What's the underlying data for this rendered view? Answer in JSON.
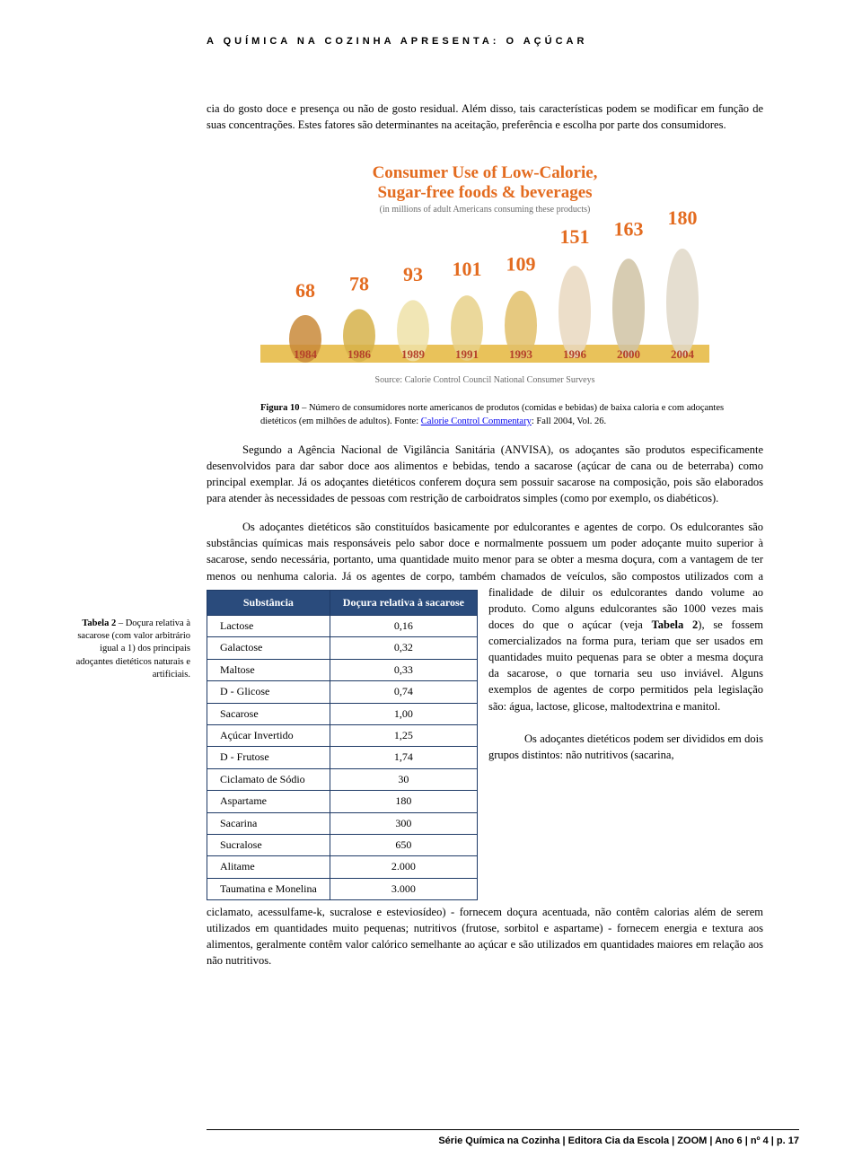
{
  "theme": {
    "link_color": "#0000ee",
    "text_color": "#000000",
    "table_header_bg": "#2a4b7c",
    "table_border": "#1e3a66"
  },
  "header": {
    "title": "A QUÍMICA NA COZINHA APRESENTA: O AÇÚCAR"
  },
  "para1": "cia do gosto doce e presença ou não de gosto residual. Além disso, tais características podem se modificar em função de suas concentrações. Estes fatores são determinantes na aceitação, preferência e escolha por parte dos consumidores.",
  "chart": {
    "type": "infographic-bar",
    "title_line1": "Consumer Use of Low-Calorie,",
    "title_line2": "Sugar-free foods & beverages",
    "subtitle": "(in millions of adult Americans consuming these products)",
    "source_line": "Source: Calorie Control Council National Consumer Surveys",
    "title_color": "#e36b1f",
    "value_color": "#e36b1f",
    "subtitle_color": "#6a6a6a",
    "background": "#ffffff",
    "categories": [
      "1984",
      "1986",
      "1989",
      "1991",
      "1993",
      "1996",
      "2000",
      "2004"
    ],
    "values": [
      68,
      78,
      93,
      101,
      109,
      151,
      163,
      180
    ],
    "value_fontsize": 22,
    "cat_fontsize": 13,
    "title_fontsize": 19
  },
  "figcap": {
    "label": "Figura 10",
    "text": " – Número de consumidores norte americanos de produtos (comidas e bebidas) de baixa caloria e com adoçantes dietéticos (em milhões de adultos). Fonte: ",
    "link_text": "Calorie Control Commentary",
    "tail": ": Fall 2004, Vol. 26."
  },
  "para2": "Segundo a Agência Nacional de Vigilância Sanitária (ANVISA), os adoçantes são produtos especificamente desenvolvidos para dar sabor doce aos alimentos e bebidas, tendo a sacarose (açúcar de cana ou de beterraba) como principal exemplar. Já os adoçantes dietéticos conferem doçura sem possuir sacarose na composição, pois são elaborados para atender às necessidades de pessoas com restrição de carboidratos simples (como por exemplo, os diabéticos).",
  "sidecap": {
    "label": "Tabela 2",
    "text": " – Doçura relativa à sacarose (com valor arbitrário igual a 1) dos principais adoçantes dietéticos naturais e artificiais."
  },
  "para3_lead": "Os adoçantes dietéticos são constituídos basicamente por edulcorantes e agentes de corpo. Os edulcorantes são substâncias químicas mais responsáveis pelo sabor doce e normalmente possuem um poder adoçante muito superior à sacarose, sendo necessária, portanto, uma quantidade muito menor para se obter a mesma doçura, com a vantagem de ter menos ou nenhuma caloria. Já os agentes de corpo, também chamados de veículos, são compostos utilizados com a finalidade ",
  "table": {
    "type": "table",
    "columns": [
      "Substância",
      "Doçura relativa à sacarose"
    ],
    "rows": [
      [
        "Lactose",
        "0,16"
      ],
      [
        "Galactose",
        "0,32"
      ],
      [
        "Maltose",
        "0,33"
      ],
      [
        "D - Glicose",
        "0,74"
      ],
      [
        "Sacarose",
        "1,00"
      ],
      [
        "Açúcar Invertido",
        "1,25"
      ],
      [
        "D - Frutose",
        "1,74"
      ],
      [
        "Ciclamato de Sódio",
        "30"
      ],
      [
        "Aspartame",
        "180"
      ],
      [
        "Sacarina",
        "300"
      ],
      [
        "Sucralose",
        "650"
      ],
      [
        "Alitame",
        "2.000"
      ],
      [
        "Taumatina e Monelina",
        "3.000"
      ]
    ]
  },
  "para3_wrap_a": "de diluir os edulcorantes dando volume ao produto. Como alguns edulcorantes são 1000 vezes mais doces do que o açúcar (veja ",
  "para3_wrap_bold": "Tabela 2",
  "para3_wrap_b": "), se fossem comercializados na forma pura, teriam que ser usados em quantidades muito pequenas para se obter a mesma doçura da sacarose, o que tornaria seu uso inviável. Alguns exemplos de agentes de corpo permitidos pela legislação são: água, lactose, glicose, maltodextrina e manitol.",
  "para3_wrap_c": "Os adoçantes dietéticos podem ser divididos em dois grupos distintos: não nutritivos (sacarina,",
  "para3_after": "ciclamato, acessulfame-k, sucralose e esteviosídeo) - fornecem doçura acentuada, não contêm calorias além de serem utilizados em quantidades muito pequenas; nutritivos (frutose, sorbitol e aspartame) - fornecem energia e textura aos alimentos, geralmente contêm valor calórico semelhante ao açúcar e são utilizados em quantidades maiores em relação aos não nutritivos.",
  "footer": {
    "text": "Série Química na Cozinha | Editora Cia da Escola | ZOOM | Ano 6 | nº 4 | p. 17"
  }
}
